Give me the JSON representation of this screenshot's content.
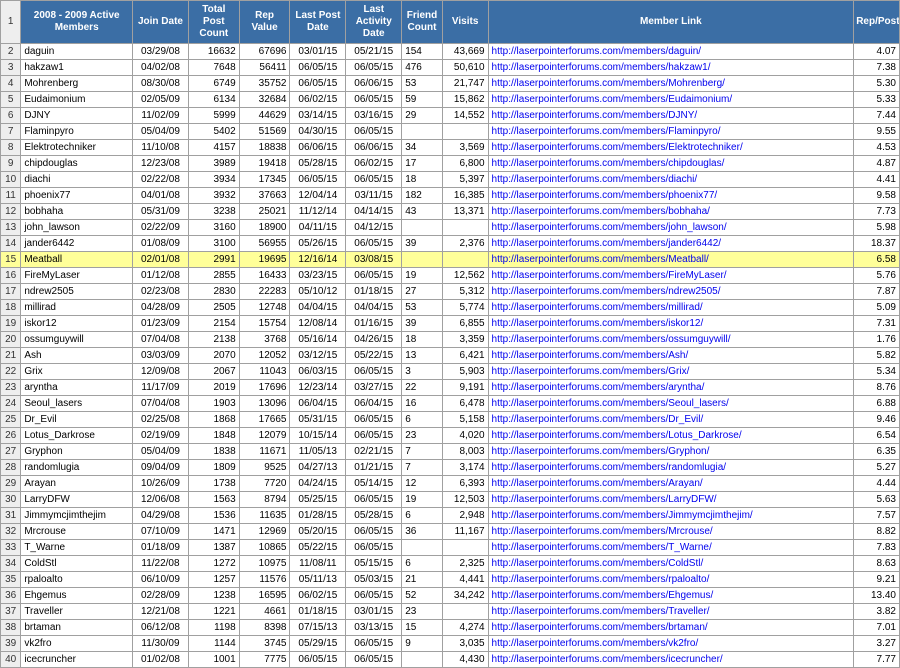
{
  "headers": {
    "members": "2008 - 2009 Active Members",
    "join": "Join Date",
    "posts": "Total Post Count",
    "rep": "Rep Value",
    "lastpost": "Last Post Date",
    "lastact": "Last Activity Date",
    "friend": "Friend Count",
    "visits": "Visits",
    "link": "Member Link",
    "reppost": "Rep/Post"
  },
  "highlight_row": 15,
  "link_color": "#0000ee",
  "header_bg": "#3b6ea5",
  "highlight_bg": "#ffff99",
  "rows": [
    {
      "n": 2,
      "m": "daguin",
      "j": "03/29/08",
      "p": "16632",
      "r": "67696",
      "lp": "03/01/15",
      "la": "05/21/15",
      "f": "154",
      "v": "43,669",
      "u": "http://laserpointerforums.com/members/daguin/",
      "rp": "4.07"
    },
    {
      "n": 3,
      "m": "hakzaw1",
      "j": "04/02/08",
      "p": "7648",
      "r": "56411",
      "lp": "06/05/15",
      "la": "06/05/15",
      "f": "476",
      "v": "50,610",
      "u": "http://laserpointerforums.com/members/hakzaw1/",
      "rp": "7.38"
    },
    {
      "n": 4,
      "m": "Mohrenberg",
      "j": "08/30/08",
      "p": "6749",
      "r": "35752",
      "lp": "06/05/15",
      "la": "06/06/15",
      "f": "53",
      "v": "21,747",
      "u": "http://laserpointerforums.com/members/Mohrenberg/",
      "rp": "5.30"
    },
    {
      "n": 5,
      "m": "Eudaimonium",
      "j": "02/05/09",
      "p": "6134",
      "r": "32684",
      "lp": "06/02/15",
      "la": "06/05/15",
      "f": "59",
      "v": "15,862",
      "u": "http://laserpointerforums.com/members/Eudaimonium/",
      "rp": "5.33"
    },
    {
      "n": 6,
      "m": "DJNY",
      "j": "11/02/09",
      "p": "5999",
      "r": "44629",
      "lp": "03/14/15",
      "la": "03/16/15",
      "f": "29",
      "v": "14,552",
      "u": "http://laserpointerforums.com/members/DJNY/",
      "rp": "7.44"
    },
    {
      "n": 7,
      "m": "Flaminpyro",
      "j": "05/04/09",
      "p": "5402",
      "r": "51569",
      "lp": "04/30/15",
      "la": "06/05/15",
      "f": "",
      "v": "",
      "u": "http://laserpointerforums.com/members/Flaminpyro/",
      "rp": "9.55"
    },
    {
      "n": 8,
      "m": "Elektrotechniker",
      "j": "11/10/08",
      "p": "4157",
      "r": "18838",
      "lp": "06/06/15",
      "la": "06/06/15",
      "f": "34",
      "v": "3,569",
      "u": "http://laserpointerforums.com/members/Elektrotechniker/",
      "rp": "4.53"
    },
    {
      "n": 9,
      "m": "chipdouglas",
      "j": "12/23/08",
      "p": "3989",
      "r": "19418",
      "lp": "05/28/15",
      "la": "06/02/15",
      "f": "17",
      "v": "6,800",
      "u": "http://laserpointerforums.com/members/chipdouglas/",
      "rp": "4.87"
    },
    {
      "n": 10,
      "m": "diachi",
      "j": "02/22/08",
      "p": "3934",
      "r": "17345",
      "lp": "06/05/15",
      "la": "06/05/15",
      "f": "18",
      "v": "5,397",
      "u": "http://laserpointerforums.com/members/diachi/",
      "rp": "4.41"
    },
    {
      "n": 11,
      "m": "phoenix77",
      "j": "04/01/08",
      "p": "3932",
      "r": "37663",
      "lp": "12/04/14",
      "la": "03/11/15",
      "f": "182",
      "v": "16,385",
      "u": "http://laserpointerforums.com/members/phoenix77/",
      "rp": "9.58"
    },
    {
      "n": 12,
      "m": "bobhaha",
      "j": "05/31/09",
      "p": "3238",
      "r": "25021",
      "lp": "11/12/14",
      "la": "04/14/15",
      "f": "43",
      "v": "13,371",
      "u": "http://laserpointerforums.com/members/bobhaha/",
      "rp": "7.73"
    },
    {
      "n": 13,
      "m": "john_lawson",
      "j": "02/22/09",
      "p": "3160",
      "r": "18900",
      "lp": "04/11/15",
      "la": "04/12/15",
      "f": "",
      "v": "",
      "u": "http://laserpointerforums.com/members/john_lawson/",
      "rp": "5.98"
    },
    {
      "n": 14,
      "m": "jander6442",
      "j": "01/08/09",
      "p": "3100",
      "r": "56955",
      "lp": "05/26/15",
      "la": "06/05/15",
      "f": "39",
      "v": "2,376",
      "u": "http://laserpointerforums.com/members/jander6442/",
      "rp": "18.37"
    },
    {
      "n": 15,
      "m": "Meatball",
      "j": "02/01/08",
      "p": "2991",
      "r": "19695",
      "lp": "12/16/14",
      "la": "03/08/15",
      "f": "",
      "v": "",
      "u": "http://laserpointerforums.com/members/Meatball/",
      "rp": "6.58"
    },
    {
      "n": 16,
      "m": "FireMyLaser",
      "j": "01/12/08",
      "p": "2855",
      "r": "16433",
      "lp": "03/23/15",
      "la": "06/05/15",
      "f": "19",
      "v": "12,562",
      "u": "http://laserpointerforums.com/members/FireMyLaser/",
      "rp": "5.76"
    },
    {
      "n": 17,
      "m": "ndrew2505",
      "j": "02/23/08",
      "p": "2830",
      "r": "22283",
      "lp": "05/10/12",
      "la": "01/18/15",
      "f": "27",
      "v": "5,312",
      "u": "http://laserpointerforums.com/members/ndrew2505/",
      "rp": "7.87"
    },
    {
      "n": 18,
      "m": "millirad",
      "j": "04/28/09",
      "p": "2505",
      "r": "12748",
      "lp": "04/04/15",
      "la": "04/04/15",
      "f": "53",
      "v": "5,774",
      "u": "http://laserpointerforums.com/members/millirad/",
      "rp": "5.09"
    },
    {
      "n": 19,
      "m": "iskor12",
      "j": "01/23/09",
      "p": "2154",
      "r": "15754",
      "lp": "12/08/14",
      "la": "01/16/15",
      "f": "39",
      "v": "6,855",
      "u": "http://laserpointerforums.com/members/iskor12/",
      "rp": "7.31"
    },
    {
      "n": 20,
      "m": "ossumguywill",
      "j": "07/04/08",
      "p": "2138",
      "r": "3768",
      "lp": "05/16/14",
      "la": "04/26/15",
      "f": "18",
      "v": "3,359",
      "u": "http://laserpointerforums.com/members/ossumguywill/",
      "rp": "1.76"
    },
    {
      "n": 21,
      "m": "Ash",
      "j": "03/03/09",
      "p": "2070",
      "r": "12052",
      "lp": "03/12/15",
      "la": "05/22/15",
      "f": "13",
      "v": "6,421",
      "u": "http://laserpointerforums.com/members/Ash/",
      "rp": "5.82"
    },
    {
      "n": 22,
      "m": "Grix",
      "j": "12/09/08",
      "p": "2067",
      "r": "11043",
      "lp": "06/03/15",
      "la": "06/05/15",
      "f": "3",
      "v": "5,903",
      "u": "http://laserpointerforums.com/members/Grix/",
      "rp": "5.34"
    },
    {
      "n": 23,
      "m": "aryntha",
      "j": "11/17/09",
      "p": "2019",
      "r": "17696",
      "lp": "12/23/14",
      "la": "03/27/15",
      "f": "22",
      "v": "9,191",
      "u": "http://laserpointerforums.com/members/aryntha/",
      "rp": "8.76"
    },
    {
      "n": 24,
      "m": "Seoul_lasers",
      "j": "07/04/08",
      "p": "1903",
      "r": "13096",
      "lp": "06/04/15",
      "la": "06/04/15",
      "f": "16",
      "v": "6,478",
      "u": "http://laserpointerforums.com/members/Seoul_lasers/",
      "rp": "6.88"
    },
    {
      "n": 25,
      "m": "Dr_Evil",
      "j": "02/25/08",
      "p": "1868",
      "r": "17665",
      "lp": "05/31/15",
      "la": "06/05/15",
      "f": "6",
      "v": "5,158",
      "u": "http://laserpointerforums.com/members/Dr_Evil/",
      "rp": "9.46"
    },
    {
      "n": 26,
      "m": "Lotus_Darkrose",
      "j": "02/19/09",
      "p": "1848",
      "r": "12079",
      "lp": "10/15/14",
      "la": "06/05/15",
      "f": "23",
      "v": "4,020",
      "u": "http://laserpointerforums.com/members/Lotus_Darkrose/",
      "rp": "6.54"
    },
    {
      "n": 27,
      "m": "Gryphon",
      "j": "05/04/09",
      "p": "1838",
      "r": "11671",
      "lp": "11/05/13",
      "la": "02/21/15",
      "f": "7",
      "v": "8,003",
      "u": "http://laserpointerforums.com/members/Gryphon/",
      "rp": "6.35"
    },
    {
      "n": 28,
      "m": "randomlugia",
      "j": "09/04/09",
      "p": "1809",
      "r": "9525",
      "lp": "04/27/13",
      "la": "01/21/15",
      "f": "7",
      "v": "3,174",
      "u": "http://laserpointerforums.com/members/randomlugia/",
      "rp": "5.27"
    },
    {
      "n": 29,
      "m": "Arayan",
      "j": "10/26/09",
      "p": "1738",
      "r": "7720",
      "lp": "04/24/15",
      "la": "05/14/15",
      "f": "12",
      "v": "6,393",
      "u": "http://laserpointerforums.com/members/Arayan/",
      "rp": "4.44"
    },
    {
      "n": 30,
      "m": "LarryDFW",
      "j": "12/06/08",
      "p": "1563",
      "r": "8794",
      "lp": "05/25/15",
      "la": "06/05/15",
      "f": "19",
      "v": "12,503",
      "u": "http://laserpointerforums.com/members/LarryDFW/",
      "rp": "5.63"
    },
    {
      "n": 31,
      "m": "Jimmymcjimthejim",
      "j": "04/29/08",
      "p": "1536",
      "r": "11635",
      "lp": "01/28/15",
      "la": "05/28/15",
      "f": "6",
      "v": "2,948",
      "u": "http://laserpointerforums.com/members/Jimmymcjimthejim/",
      "rp": "7.57"
    },
    {
      "n": 32,
      "m": "Mrcrouse",
      "j": "07/10/09",
      "p": "1471",
      "r": "12969",
      "lp": "05/20/15",
      "la": "06/05/15",
      "f": "36",
      "v": "11,167",
      "u": "http://laserpointerforums.com/members/Mrcrouse/",
      "rp": "8.82"
    },
    {
      "n": 33,
      "m": "T_Warne",
      "j": "01/18/09",
      "p": "1387",
      "r": "10865",
      "lp": "05/22/15",
      "la": "06/05/15",
      "f": "",
      "v": "",
      "u": "http://laserpointerforums.com/members/T_Warne/",
      "rp": "7.83"
    },
    {
      "n": 34,
      "m": "ColdStl",
      "j": "11/22/08",
      "p": "1272",
      "r": "10975",
      "lp": "11/08/11",
      "la": "05/15/15",
      "f": "6",
      "v": "2,325",
      "u": "http://laserpointerforums.com/members/ColdStl/",
      "rp": "8.63"
    },
    {
      "n": 35,
      "m": "rpaloalto",
      "j": "06/10/09",
      "p": "1257",
      "r": "11576",
      "lp": "05/11/13",
      "la": "05/03/15",
      "f": "21",
      "v": "4,441",
      "u": "http://laserpointerforums.com/members/rpaloalto/",
      "rp": "9.21"
    },
    {
      "n": 36,
      "m": "Ehgemus",
      "j": "02/28/09",
      "p": "1238",
      "r": "16595",
      "lp": "06/02/15",
      "la": "06/05/15",
      "f": "52",
      "v": "34,242",
      "u": "http://laserpointerforums.com/members/Ehgemus/",
      "rp": "13.40"
    },
    {
      "n": 37,
      "m": "Traveller",
      "j": "12/21/08",
      "p": "1221",
      "r": "4661",
      "lp": "01/18/15",
      "la": "03/01/15",
      "f": "23",
      "v": "",
      "u": "http://laserpointerforums.com/members/Traveller/",
      "rp": "3.82"
    },
    {
      "n": 38,
      "m": "brtaman",
      "j": "06/12/08",
      "p": "1198",
      "r": "8398",
      "lp": "07/15/13",
      "la": "03/13/15",
      "f": "15",
      "v": "4,274",
      "u": "http://laserpointerforums.com/members/brtaman/",
      "rp": "7.01"
    },
    {
      "n": 39,
      "m": "vk2fro",
      "j": "11/30/09",
      "p": "1144",
      "r": "3745",
      "lp": "05/29/15",
      "la": "06/05/15",
      "f": "9",
      "v": "3,035",
      "u": "http://laserpointerforums.com/members/vk2fro/",
      "rp": "3.27"
    },
    {
      "n": 40,
      "m": "icecruncher",
      "j": "01/02/08",
      "p": "1001",
      "r": "7775",
      "lp": "06/05/15",
      "la": "06/05/15",
      "f": "",
      "v": "4,430",
      "u": "http://laserpointerforums.com/members/icecruncher/",
      "rp": "7.77"
    }
  ]
}
